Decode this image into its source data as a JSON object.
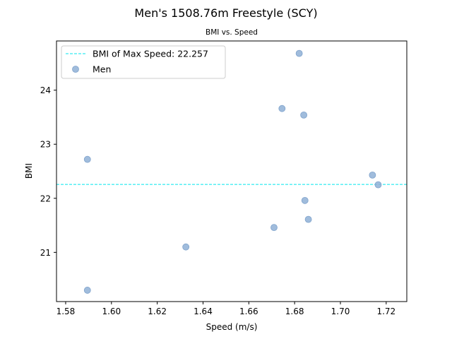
{
  "chart_data": {
    "type": "scatter",
    "title": "Men's 1508.76m Freestyle (SCY)",
    "subtitle": "BMI vs. Speed",
    "xlabel": "Speed (m/s)",
    "ylabel": "BMI",
    "xlim": [
      1.576,
      1.729
    ],
    "ylim": [
      20.09,
      24.91
    ],
    "xticks": [
      "1.58",
      "1.60",
      "1.62",
      "1.64",
      "1.66",
      "1.68",
      "1.70",
      "1.72"
    ],
    "yticks": [
      "21",
      "22",
      "23",
      "24"
    ],
    "grid": false,
    "legend_position": "top-left",
    "series": [
      {
        "name": "Men",
        "color": "#8fb0d6",
        "points": [
          {
            "x": 1.682,
            "y": 24.68
          },
          {
            "x": 1.6745,
            "y": 23.66
          },
          {
            "x": 1.684,
            "y": 23.54
          },
          {
            "x": 1.5895,
            "y": 22.72
          },
          {
            "x": 1.714,
            "y": 22.43
          },
          {
            "x": 1.7165,
            "y": 22.25
          },
          {
            "x": 1.6845,
            "y": 21.96
          },
          {
            "x": 1.686,
            "y": 21.61
          },
          {
            "x": 1.671,
            "y": 21.46
          },
          {
            "x": 1.6325,
            "y": 21.1
          },
          {
            "x": 1.5895,
            "y": 20.3
          }
        ]
      }
    ],
    "reference_line": {
      "label": "BMI of Max Speed: 22.257",
      "y": 22.257,
      "color": "#00e5ee",
      "style": "dashed"
    }
  }
}
